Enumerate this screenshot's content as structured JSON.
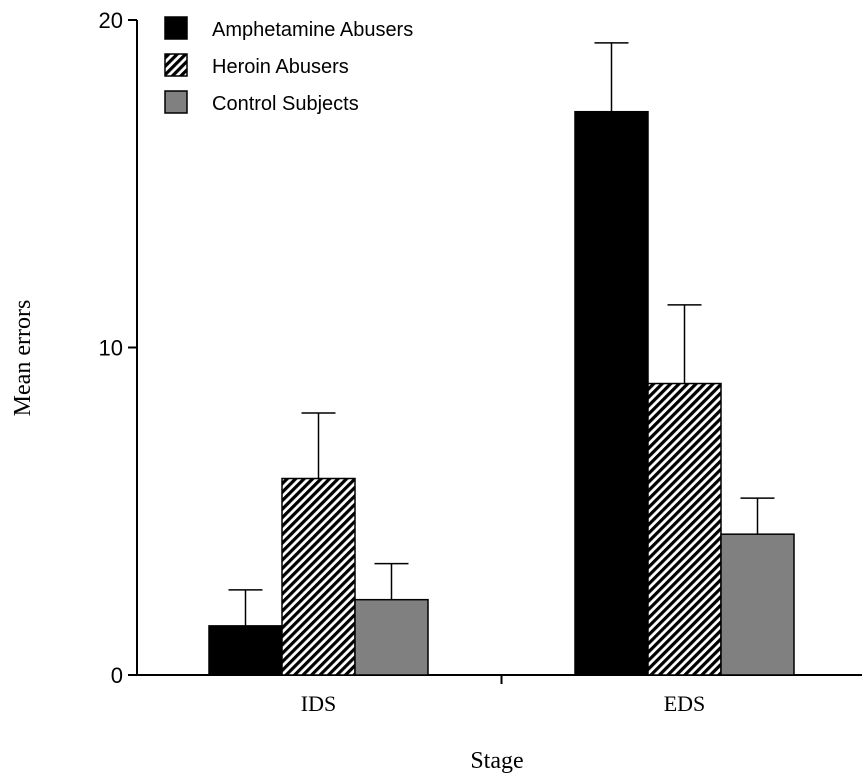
{
  "chart_data": {
    "type": "bar",
    "title": "",
    "xlabel": "Stage",
    "ylabel": "Mean errors",
    "categories": [
      "IDS",
      "EDS"
    ],
    "ylim": [
      0,
      20
    ],
    "yticks": [
      0,
      10,
      20
    ],
    "grid": false,
    "legend_position": "top-left",
    "series": [
      {
        "name": "Amphetamine Abusers",
        "values": [
          1.5,
          17.2
        ],
        "errors": [
          1.1,
          2.1
        ],
        "color": "#000000",
        "pattern": "solid"
      },
      {
        "name": "Heroin Abusers",
        "values": [
          6.0,
          8.9
        ],
        "errors": [
          2.0,
          2.4
        ],
        "color": "#000000",
        "pattern": "hatched"
      },
      {
        "name": "Control Subjects",
        "values": [
          2.3,
          4.3
        ],
        "errors": [
          1.1,
          1.1
        ],
        "color": "#808080",
        "pattern": "solid"
      }
    ]
  }
}
